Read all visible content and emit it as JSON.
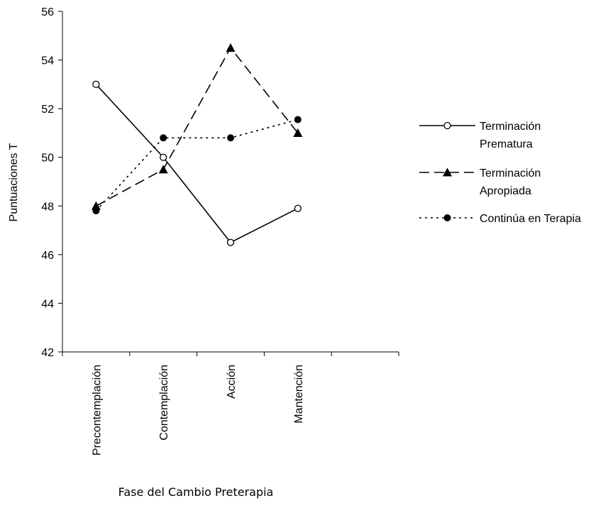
{
  "chart_data": {
    "type": "line",
    "title": "",
    "xlabel": "Fase del Cambio Preterapia",
    "ylabel": "Puntuaciones T",
    "ylim": [
      42,
      56
    ],
    "yticks": [
      42,
      44,
      46,
      48,
      50,
      52,
      54,
      56
    ],
    "categories": [
      "Precontemplación",
      "Contemplación",
      "Acción",
      "Mantención"
    ],
    "grid": false,
    "legend_position": "right",
    "series": [
      {
        "name_lines": [
          "Terminación",
          "Prematura"
        ],
        "values": [
          53,
          50,
          46.5,
          47.9
        ],
        "line_style": "solid",
        "marker": "open-circle",
        "color": "#000000"
      },
      {
        "name_lines": [
          "Terminación",
          "Apropiada"
        ],
        "values": [
          48,
          49.5,
          54.5,
          51
        ],
        "line_style": "dashed",
        "marker": "filled-triangle",
        "color": "#000000"
      },
      {
        "name_lines": [
          "Continúa en Terapia"
        ],
        "values": [
          47.8,
          50.8,
          50.8,
          51.55
        ],
        "line_style": "dotted",
        "marker": "filled-circle",
        "color": "#000000"
      }
    ]
  }
}
